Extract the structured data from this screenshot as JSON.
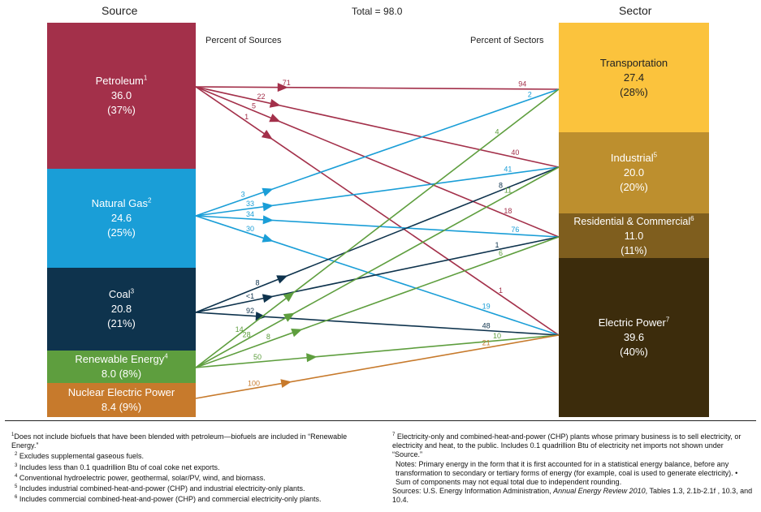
{
  "headers": {
    "source": "Source",
    "total": "Total = 98.0",
    "sector": "Sector",
    "percent_sources": "Percent of Sources",
    "percent_sectors": "Percent of Sectors"
  },
  "sources": [
    {
      "name": "Petroleum",
      "sup": "1",
      "value": "36.0",
      "pct": "(37%)",
      "color": "#A3304A"
    },
    {
      "name": "Natural Gas",
      "sup": "2",
      "value": "24.6",
      "pct": "(25%)",
      "color": "#1A9ED7"
    },
    {
      "name": "Coal",
      "sup": "3",
      "value": "20.8",
      "pct": "(21%)",
      "color": "#0E334D"
    },
    {
      "name": "Renewable Energy",
      "sup": "4",
      "value": "8.0 (8%)",
      "pct": "",
      "color": "#5E9E3E"
    },
    {
      "name": "Nuclear Electric Power",
      "sup": "",
      "value": "8.4 (9%)",
      "pct": "",
      "color": "#C77A2C"
    }
  ],
  "sectors": [
    {
      "name": "Transportation",
      "sup": "",
      "value": "27.4",
      "pct": "(28%)",
      "color": "#FBC33D",
      "text": "#222"
    },
    {
      "name": "Industrial",
      "sup": "5",
      "value": "20.0",
      "pct": "(20%)",
      "color": "#BD8F2E",
      "text": "#fff"
    },
    {
      "name": "Residential & Commercial",
      "sup": "6",
      "value": "11.0",
      "pct": "(11%)",
      "color": "#7F5E1E",
      "text": "#fff"
    },
    {
      "name": "Electric Power",
      "sup": "7",
      "value": "39.6",
      "pct": "(40%)",
      "color": "#3C2C0C",
      "text": "#fff"
    }
  ],
  "flows": [
    {
      "from": "Petroleum",
      "to": "Transportation",
      "src_pct": "71",
      "sec_pct": "94",
      "color": "#A3304A"
    },
    {
      "from": "Petroleum",
      "to": "Industrial",
      "src_pct": "22",
      "sec_pct": "40",
      "color": "#A3304A"
    },
    {
      "from": "Petroleum",
      "to": "Residential & Commercial",
      "src_pct": "5",
      "sec_pct": "18",
      "color": "#A3304A"
    },
    {
      "from": "Petroleum",
      "to": "Electric Power",
      "src_pct": "1",
      "sec_pct": "1",
      "color": "#A3304A"
    },
    {
      "from": "Natural Gas",
      "to": "Transportation",
      "src_pct": "3",
      "sec_pct": "2",
      "color": "#1A9ED7"
    },
    {
      "from": "Natural Gas",
      "to": "Industrial",
      "src_pct": "33",
      "sec_pct": "41",
      "color": "#1A9ED7"
    },
    {
      "from": "Natural Gas",
      "to": "Residential & Commercial",
      "src_pct": "34",
      "sec_pct": "76",
      "color": "#1A9ED7"
    },
    {
      "from": "Natural Gas",
      "to": "Electric Power",
      "src_pct": "30",
      "sec_pct": "19",
      "color": "#1A9ED7"
    },
    {
      "from": "Coal",
      "to": "Industrial",
      "src_pct": "8",
      "sec_pct": "8",
      "color": "#0E334D"
    },
    {
      "from": "Coal",
      "to": "Residential & Commercial",
      "src_pct": "<1",
      "sec_pct": "1",
      "color": "#0E334D"
    },
    {
      "from": "Coal",
      "to": "Electric Power",
      "src_pct": "92",
      "sec_pct": "48",
      "color": "#0E334D"
    },
    {
      "from": "Renewable Energy",
      "to": "Transportation",
      "src_pct": "14",
      "sec_pct": "4",
      "color": "#5E9E3E"
    },
    {
      "from": "Renewable Energy",
      "to": "Industrial",
      "src_pct": "28",
      "sec_pct": "11",
      "color": "#5E9E3E"
    },
    {
      "from": "Renewable Energy",
      "to": "Residential & Commercial",
      "src_pct": "8",
      "sec_pct": "6",
      "color": "#5E9E3E"
    },
    {
      "from": "Renewable Energy",
      "to": "Electric Power",
      "src_pct": "50",
      "sec_pct": "10",
      "color": "#5E9E3E"
    },
    {
      "from": "Nuclear Electric Power",
      "to": "Electric Power",
      "src_pct": "100",
      "sec_pct": "21",
      "color": "#C77A2C"
    }
  ],
  "footnotes_left": [
    {
      "sup": "1",
      "text": "Does not include biofuels that have been blended with petroleum—biofuels are included in “Renewable Energy.”"
    },
    {
      "sup": "2",
      "text": "Excludes supplemental gaseous fuels."
    },
    {
      "sup": "3",
      "text": "Includes less than 0.1 quadrillion Btu of coal coke net exports."
    },
    {
      "sup": "4",
      "text": "Conventional hydroelectric power, geothermal, solar/PV, wind, and biomass."
    },
    {
      "sup": "5",
      "text": "Includes industrial combined-heat-and-power (CHP) and industrial electricity-only plants."
    },
    {
      "sup": "6",
      "text": "Includes commercial combined-heat-and-power (CHP) and commercial electricity-only plants."
    }
  ],
  "footnote_right_7": {
    "sup": "7",
    "text": "Electricity-only and combined-heat-and-power (CHP) plants whose primary business is to sell electricity, or electricity and heat, to the public.  Includes 0.1 quadrillion Btu of electricity net imports not shown under “Source.”"
  },
  "notes": "Notes:  Primary energy in the form that it is first accounted for in a statistical energy balance, before any transformation to secondary or tertiary forms of energy (for example, coal is used to generate electricity).  •  Sum of components may not equal total due to independent rounding.",
  "sources_note": {
    "prefix": "Sources:  U.S. Energy Information Administration, ",
    "title": "Annual Energy Review 2010",
    "suffix": ", Tables 1.3, 2.1b-2.1f , 10.3, and 10.4."
  }
}
